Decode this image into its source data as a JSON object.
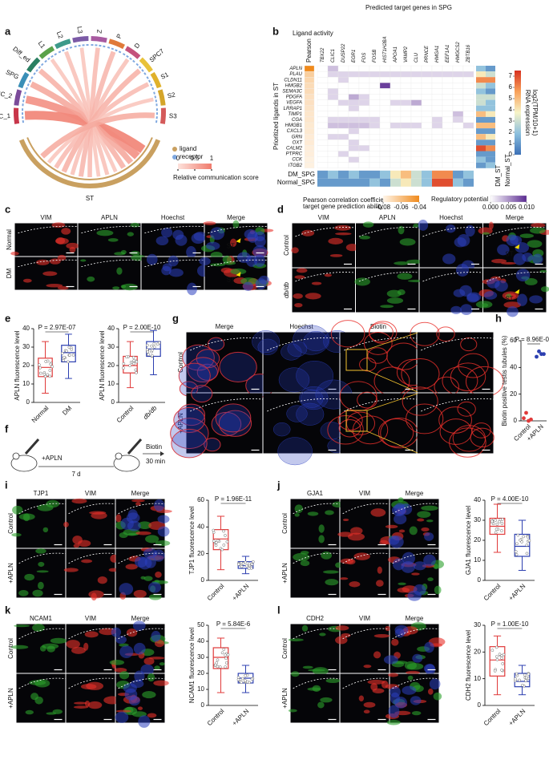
{
  "panels": {
    "a": {
      "label": "a",
      "type": "chord",
      "sectors": [
        "SSC_1",
        "SSC_2",
        "SPG",
        "Diff_ed",
        "L1",
        "L2",
        "L3",
        "Z",
        "P",
        "D",
        "SPC7",
        "S1",
        "S2",
        "S3"
      ],
      "colors": [
        "#c8364a",
        "#7b4b9a",
        "#3a8fb7",
        "#2a7f62",
        "#5aa24a",
        "#3d9a8a",
        "#7b5aa6",
        "#a85aa0",
        "#e07a3a",
        "#c4527c",
        "#e8c23a",
        "#e0b12a",
        "#d4a52a",
        "#d45a5a"
      ],
      "scores": [
        1,
        0.85,
        0.6,
        0.5,
        0.3,
        0.35,
        0.3,
        0.4,
        0.45,
        0.35,
        0.5,
        0.4,
        0.3,
        0.55
      ],
      "base": "ST",
      "base_color": "#c9a060",
      "legend": [
        {
          "name": "ligand",
          "color": "#c9a060"
        },
        {
          "name": "receptor",
          "color": "#7fa8e0"
        }
      ],
      "colorbar_title": "Relative communication score",
      "colorbar_ticks": [
        0,
        0.5,
        1
      ]
    },
    "b": {
      "label": "b",
      "type": "heatmap",
      "title": "Predicted target genes in SPG",
      "subtitle": "Ligand activity",
      "pearson_label": "Pearson",
      "ylabel": "Prioritized ligands in ST",
      "ligands": [
        "APLN",
        "PLAU",
        "CLDN11",
        "HMGB2",
        "SEMA3C",
        "PDGFA",
        "VEGFA",
        "LRRAP1",
        "TIMP1",
        "CGA",
        "HMGB1",
        "CXCL3",
        "GRN",
        "OXT",
        "CALM2",
        "PTPRC",
        "CCK",
        "ITGB2"
      ],
      "targets": [
        "TBX22",
        "CLIC1",
        "DUSP22",
        "EGR1",
        "FOS",
        "FOSB",
        "HIST1H2BA",
        "APOA1",
        "VAMP2",
        "CLU",
        "PRNCE",
        "HMGA1",
        "EEF1A1",
        "HMGCS2",
        "ZBTB16"
      ],
      "pearson": [
        -0.04,
        -0.065,
        -0.068,
        -0.07,
        -0.07,
        -0.072,
        -0.072,
        -0.073,
        -0.074,
        -0.074,
        -0.075,
        -0.075,
        -0.076,
        -0.076,
        -0.077,
        -0.077,
        -0.078,
        -0.078
      ],
      "potential": [
        [
          0,
          0.003,
          0,
          0,
          0,
          0,
          0,
          0,
          0,
          0,
          0,
          0,
          0,
          0,
          0
        ],
        [
          0,
          0.002,
          0.002,
          0.002,
          0.002,
          0.002,
          0.002,
          0.002,
          0.002,
          0.002,
          0.002,
          0.002,
          0.002,
          0.002,
          0.002
        ],
        [
          0,
          0,
          0.002,
          0,
          0,
          0,
          0,
          0,
          0,
          0,
          0,
          0,
          0,
          0,
          0
        ],
        [
          0,
          0,
          0,
          0,
          0,
          0,
          0.009,
          0,
          0,
          0,
          0,
          0,
          0,
          0,
          0
        ],
        [
          0,
          0.002,
          0,
          0,
          0,
          0,
          0,
          0,
          0,
          0,
          0,
          0,
          0,
          0,
          0
        ],
        [
          0,
          0.002,
          0,
          0.004,
          0.002,
          0,
          0,
          0,
          0,
          0,
          0,
          0,
          0,
          0,
          0
        ],
        [
          0,
          0,
          0.002,
          0.002,
          0.002,
          0,
          0,
          0.002,
          0.002,
          0.004,
          0,
          0,
          0,
          0,
          0
        ],
        [
          0,
          0,
          0,
          0.002,
          0,
          0,
          0,
          0,
          0,
          0,
          0,
          0,
          0,
          0,
          0
        ],
        [
          0,
          0,
          0,
          0,
          0,
          0,
          0,
          0,
          0,
          0,
          0,
          0,
          0,
          0.003,
          0
        ],
        [
          0,
          0.002,
          0.002,
          0.002,
          0.002,
          0.002,
          0,
          0,
          0,
          0,
          0,
          0.002,
          0,
          0.002,
          0
        ],
        [
          0,
          0.003,
          0.003,
          0.003,
          0.003,
          0.002,
          0,
          0.002,
          0.002,
          0.002,
          0,
          0.002,
          0,
          0,
          0.002
        ],
        [
          0,
          0,
          0,
          0.002,
          0,
          0,
          0,
          0,
          0,
          0,
          0,
          0,
          0,
          0,
          0
        ],
        [
          0,
          0.002,
          0.002,
          0,
          0,
          0,
          0,
          0,
          0,
          0,
          0,
          0,
          0,
          0,
          0
        ],
        [
          0,
          0,
          0,
          0.002,
          0,
          0,
          0,
          0,
          0,
          0,
          0,
          0,
          0,
          0,
          0
        ],
        [
          0,
          0,
          0,
          0.002,
          0.002,
          0,
          0,
          0,
          0,
          0,
          0,
          0,
          0,
          0,
          0
        ],
        [
          0,
          0,
          0.002,
          0,
          0,
          0,
          0,
          0,
          0,
          0,
          0,
          0,
          0,
          0,
          0
        ],
        [
          0,
          0,
          0,
          0.002,
          0,
          0,
          0,
          0,
          0,
          0,
          0,
          0,
          0,
          0,
          0
        ],
        [
          0,
          0,
          0,
          0,
          0,
          0,
          0,
          0,
          0,
          0,
          0,
          0,
          0,
          0,
          0
        ]
      ],
      "st_expression": [
        {
          "name": "DM_ST",
          "values": [
            2,
            4,
            6,
            3,
            2,
            3,
            3,
            2,
            5,
            1,
            5,
            1,
            5,
            1,
            7,
            1,
            2,
            1
          ]
        },
        {
          "name": "Normal_ST",
          "values": [
            1,
            3,
            6,
            2,
            1,
            3,
            2,
            2,
            4,
            1,
            5,
            1,
            4,
            1,
            6,
            1,
            1,
            2
          ]
        }
      ],
      "spg_expression": [
        {
          "name": "DM_SPG",
          "values": [
            1,
            2,
            1,
            2,
            1,
            1,
            2,
            4,
            5,
            3,
            2,
            6,
            6,
            1,
            2
          ]
        },
        {
          "name": "Normal_SPG",
          "values": [
            1,
            1,
            1,
            1,
            1,
            2,
            1,
            3,
            4,
            3,
            2,
            7,
            7,
            2,
            1
          ]
        }
      ],
      "expression_title": [
        "RNA expression",
        "log2(TPM/10+1)"
      ],
      "expression_lim": [
        0,
        7.5
      ],
      "expression_ticks": [
        0,
        1,
        2,
        3,
        4,
        5,
        6,
        7
      ],
      "pearson_legend": [
        "Pearson correlation coefficient",
        "target gene prediction ability"
      ],
      "pearson_lim": [
        -0.08,
        -0.04
      ],
      "pearson_ticks": [
        -0.08,
        -0.06,
        -0.04
      ],
      "potential_legend": "Regulatory potential",
      "potential_lim": [
        0,
        0.01
      ],
      "potential_ticks": [
        {
          "value": 0,
          "label": "0.000"
        },
        {
          "value": 0.005,
          "label": "0.005"
        },
        {
          "value": 0.01,
          "label": "0.010"
        }
      ]
    },
    "c": {
      "label": "c",
      "columns": [
        "VIM",
        "APLN",
        "Hoechst",
        "Merge"
      ],
      "colors": [
        "#e8302a",
        "#2ca02c",
        "#2b3fbf",
        "#111111"
      ],
      "rows": [
        "Normal",
        "DM"
      ],
      "annotation": "ST"
    },
    "d": {
      "label": "d",
      "columns": [
        "VIM",
        "APLN",
        "Hoechst",
        "Merge"
      ],
      "colors": [
        "#e8302a",
        "#2ca02c",
        "#2b3fbf",
        "#111111"
      ],
      "rows": [
        "Control",
        "db/db"
      ],
      "annotation": "ST"
    },
    "e": {
      "label": "e",
      "charts": [
        {
          "type": "box",
          "ylabel": "APLN fluorescence level",
          "categories": [
            "Normal",
            "DM"
          ],
          "colors": [
            "#e03a3a",
            "#2c3fb0"
          ],
          "ylim": [
            0,
            40
          ],
          "yticks": [
            0,
            10,
            20,
            30,
            40
          ],
          "p_label": "P = 2.97E-07",
          "boxes": [
            {
              "min": 5,
              "q1": 14,
              "median": 19,
              "q3": 24,
              "max": 33
            },
            {
              "min": 13,
              "q1": 22,
              "median": 27,
              "q3": 31,
              "max": 37
            }
          ]
        },
        {
          "type": "box",
          "ylabel": "APLN fluorescence level",
          "categories": [
            "Control",
            "db/db"
          ],
          "colors": [
            "#e03a3a",
            "#2c3fb0"
          ],
          "ylim": [
            0,
            40
          ],
          "yticks": [
            0,
            10,
            20,
            30,
            40
          ],
          "p_label": "P = 2.00E-10",
          "boxes": [
            {
              "min": 8,
              "q1": 16,
              "median": 20,
              "q3": 25,
              "max": 33
            },
            {
              "min": 15,
              "q1": 25,
              "median": 29,
              "q3": 33,
              "max": 39
            }
          ]
        }
      ]
    },
    "f": {
      "label": "f",
      "treatment": "+APLN",
      "interval": "7 d",
      "tracer": "Biotin",
      "tracer_time": "30 min"
    },
    "g": {
      "label": "g",
      "columns": [
        "Merge",
        "Hoechst",
        "Biotin"
      ],
      "colors": [
        "#111111",
        "#2b3fbf",
        "#e8302a"
      ],
      "rows": [
        "Control",
        "+APLN"
      ]
    },
    "h": {
      "label": "h",
      "type": "scatter",
      "ylabel": "Biotin positive testis tubules (%)",
      "categories": [
        "Control",
        "+APLN"
      ],
      "colors": [
        "#e03a3a",
        "#2c3fb0"
      ],
      "ylim": [
        0,
        60
      ],
      "yticks": [
        0,
        20,
        40,
        60
      ],
      "p_label": "P = 8.96E-06",
      "points": [
        [
          2,
          6,
          0,
          1
        ],
        [
          48,
          52,
          50,
          50
        ]
      ]
    },
    "i": {
      "label": "i",
      "columns": [
        "TJP1",
        "VIM",
        "Merge"
      ],
      "colors": [
        "#2ca02c",
        "#e8302a",
        "#111111"
      ],
      "rows": [
        "Control",
        "+APLN"
      ],
      "chart": {
        "type": "box",
        "ylabel": "TJP1 fluorescence level",
        "categories": [
          "Control",
          "+APLN"
        ],
        "colors": [
          "#e03a3a",
          "#2c3fb0"
        ],
        "ylim": [
          0,
          60
        ],
        "yticks": [
          0,
          20,
          40,
          60
        ],
        "p_label": "P = 1.96E-11",
        "boxes": [
          {
            "min": 8,
            "q1": 23,
            "median": 31,
            "q3": 38,
            "max": 48
          },
          {
            "min": 5,
            "q1": 9,
            "median": 11,
            "q3": 14,
            "max": 18
          }
        ]
      }
    },
    "j": {
      "label": "j",
      "columns": [
        "GJA1",
        "VIM",
        "Merge"
      ],
      "colors": [
        "#2ca02c",
        "#e8302a",
        "#111111"
      ],
      "rows": [
        "Control",
        "+APLN"
      ],
      "chart": {
        "type": "box",
        "ylabel": "GJA1 fluorescence level",
        "categories": [
          "Control",
          "+APLN"
        ],
        "colors": [
          "#e03a3a",
          "#2c3fb0"
        ],
        "ylim": [
          0,
          40
        ],
        "yticks": [
          0,
          10,
          20,
          30,
          40
        ],
        "p_label": "P = 4.00E-10",
        "boxes": [
          {
            "min": 14,
            "q1": 23,
            "median": 27,
            "q3": 31,
            "max": 38
          },
          {
            "min": 5,
            "q1": 12,
            "median": 17,
            "q3": 23,
            "max": 30
          }
        ]
      }
    },
    "k": {
      "label": "k",
      "columns": [
        "NCAM1",
        "VIM",
        "Merge"
      ],
      "colors": [
        "#2ca02c",
        "#e8302a",
        "#111111"
      ],
      "rows": [
        "Control",
        "+APLN"
      ],
      "chart": {
        "type": "box",
        "ylabel": "NCAM1 fluorescence level",
        "categories": [
          "Control",
          "+APLN"
        ],
        "colors": [
          "#e03a3a",
          "#2c3fb0"
        ],
        "ylim": [
          0,
          50
        ],
        "yticks": [
          0,
          10,
          20,
          30,
          40,
          50
        ],
        "p_label": "P = 5.84E-6",
        "boxes": [
          {
            "min": 8,
            "q1": 23,
            "median": 30,
            "q3": 36,
            "max": 42
          },
          {
            "min": 8,
            "q1": 14,
            "median": 17,
            "q3": 20,
            "max": 25
          }
        ]
      }
    },
    "l": {
      "label": "l",
      "columns": [
        "CDH2",
        "VIM",
        "Merge"
      ],
      "colors": [
        "#2ca02c",
        "#e8302a",
        "#111111"
      ],
      "rows": [
        "Control",
        "+APLN"
      ],
      "chart": {
        "type": "box",
        "ylabel": "CDH2 fluorescence level",
        "categories": [
          "Control",
          "+APLN"
        ],
        "colors": [
          "#e03a3a",
          "#2c3fb0"
        ],
        "ylim": [
          0,
          30
        ],
        "yticks": [
          0,
          10,
          20,
          30
        ],
        "p_label": "P = 1.00E-10",
        "boxes": [
          {
            "min": 4,
            "q1": 11,
            "median": 17,
            "q3": 22,
            "max": 26
          },
          {
            "min": 4,
            "q1": 7,
            "median": 9,
            "q3": 12,
            "max": 15
          }
        ]
      }
    }
  }
}
